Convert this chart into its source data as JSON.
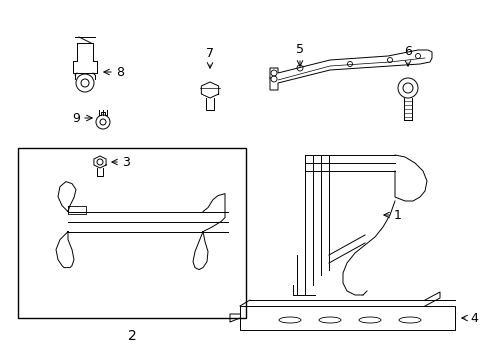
{
  "bg_color": "#ffffff",
  "border_color": "#000000",
  "line_color": "#000000",
  "label_color": "#000000",
  "font_size_number": 9,
  "fig_width": 4.89,
  "fig_height": 3.6,
  "dpi": 100
}
